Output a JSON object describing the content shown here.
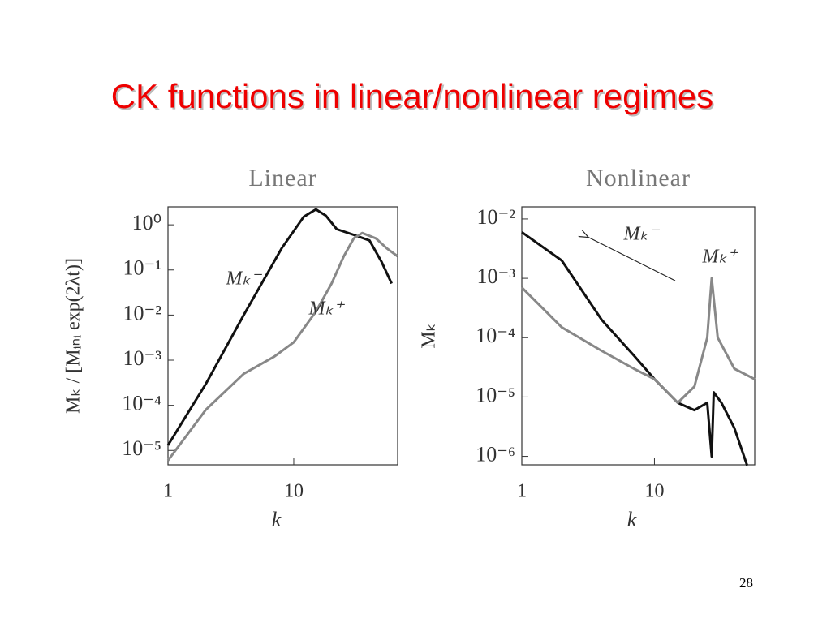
{
  "slide": {
    "title": "CK functions in linear/nonlinear regimes",
    "page_number": "28"
  },
  "chart_data": [
    {
      "type": "line",
      "title": "Linear",
      "x_label": "k",
      "y_label": "Mₖ / [Mᵢₙᵢ exp(2λt)]",
      "log_x": true,
      "log_y": true,
      "xlim": [
        1,
        67
      ],
      "ylim": [
        4.8e-06,
        2.5
      ],
      "xticks": [
        1,
        10
      ],
      "yticks": [
        {
          "value": 1e-05,
          "label": "10⁻⁵"
        },
        {
          "value": 0.0001,
          "label": "10⁻⁴"
        },
        {
          "value": 0.001,
          "label": "10⁻³"
        },
        {
          "value": 0.01,
          "label": "10⁻²"
        },
        {
          "value": 0.1,
          "label": "10⁻¹"
        },
        {
          "value": 1,
          "label": "10⁰"
        }
      ],
      "series": [
        {
          "name": "Mₖ⁻",
          "color": "#111111",
          "x": [
            1,
            2,
            4,
            8,
            12,
            15,
            18,
            22,
            30,
            40,
            50,
            60
          ],
          "values": [
            1.3e-05,
            0.0003,
            0.01,
            0.3,
            1.5,
            2.2,
            1.6,
            0.8,
            0.6,
            0.45,
            0.15,
            0.05
          ]
        },
        {
          "name": "Mₖ⁺",
          "color": "#888888",
          "x": [
            1,
            2,
            4,
            7,
            10,
            15,
            20,
            25,
            30,
            35,
            45,
            55,
            67
          ],
          "values": [
            6e-06,
            8e-05,
            0.0005,
            0.0012,
            0.0025,
            0.012,
            0.05,
            0.2,
            0.5,
            0.66,
            0.5,
            0.3,
            0.2
          ]
        }
      ]
    },
    {
      "type": "line",
      "title": "Nonlinear",
      "x_label": "k",
      "y_label": "Mₖ",
      "log_x": true,
      "log_y": true,
      "xlim": [
        1,
        57
      ],
      "ylim": [
        7.2e-07,
        0.016
      ],
      "xticks": [
        1,
        10
      ],
      "yticks": [
        {
          "value": 1e-06,
          "label": "10⁻⁶"
        },
        {
          "value": 1e-05,
          "label": "10⁻⁵"
        },
        {
          "value": 0.0001,
          "label": "10⁻⁴"
        },
        {
          "value": 0.001,
          "label": "10⁻³"
        },
        {
          "value": 0.01,
          "label": "10⁻²"
        }
      ],
      "series": [
        {
          "name": "Mₖ⁻",
          "color": "#111111",
          "x": [
            1,
            2,
            4,
            7,
            10,
            15,
            20,
            25,
            27,
            28,
            32,
            40,
            50
          ],
          "values": [
            0.006,
            0.002,
            0.0002,
            5e-05,
            2e-05,
            8e-06,
            6e-06,
            8e-06,
            1e-06,
            1.2e-05,
            8e-06,
            3e-06,
            7e-07
          ]
        },
        {
          "name": "Mₖ⁺",
          "color": "#888888",
          "x": [
            1,
            2,
            4,
            7,
            10,
            15,
            20,
            25,
            27,
            30,
            40,
            57
          ],
          "values": [
            0.0007,
            0.00015,
            6e-05,
            3e-05,
            2e-05,
            8e-06,
            1.5e-05,
            0.0001,
            0.001,
            0.0001,
            3e-05,
            2e-05
          ]
        }
      ]
    }
  ]
}
